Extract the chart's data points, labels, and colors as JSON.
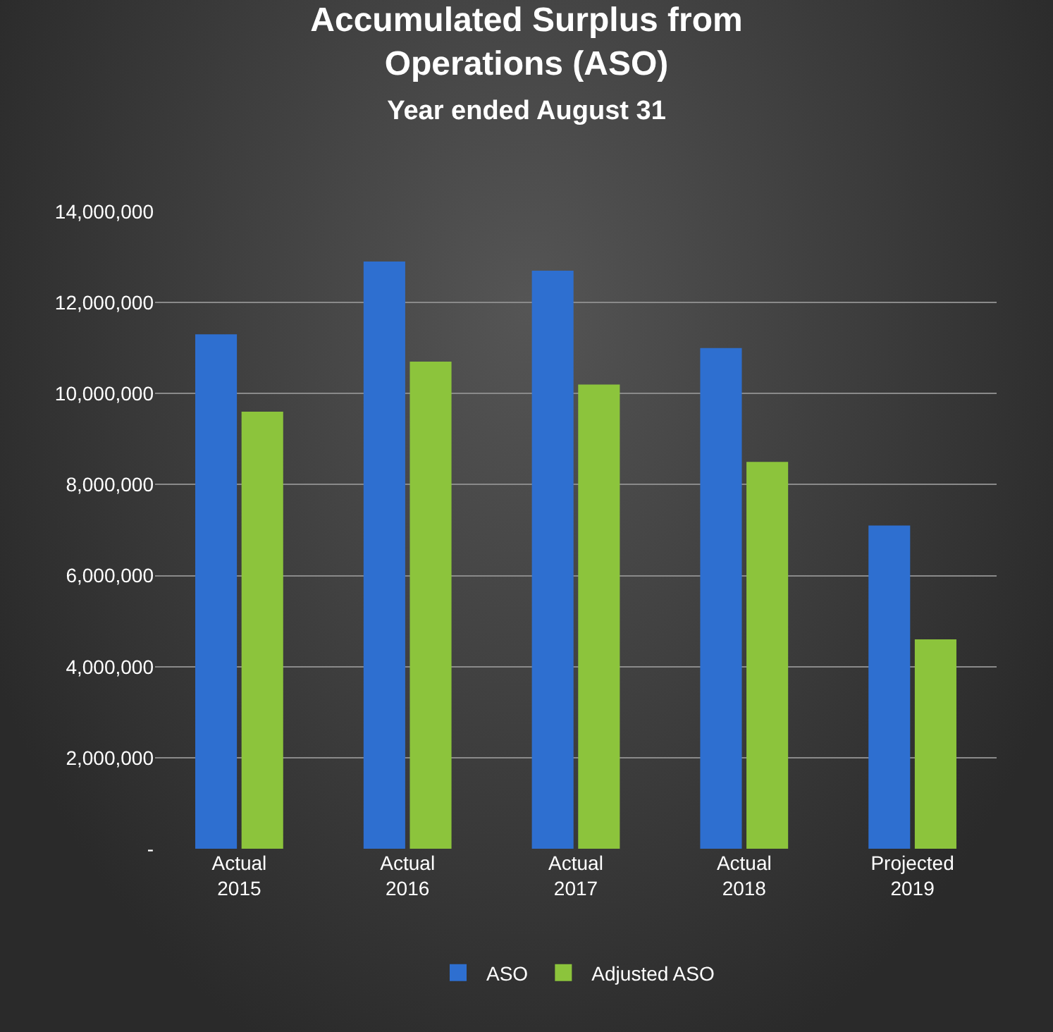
{
  "chart_data": {
    "type": "bar",
    "title": "Accumulated Surplus from\nOperations (ASO)",
    "subtitle": "Year ended August 31",
    "categories": [
      "Actual\n2015",
      "Actual\n2016",
      "Actual\n2017",
      "Actual\n2018",
      "Projected\n2019"
    ],
    "series": [
      {
        "name": "ASO",
        "color": "#2e6fd0",
        "values": [
          11300000,
          12900000,
          12700000,
          11000000,
          7100000
        ]
      },
      {
        "name": "Adjusted ASO",
        "color": "#8cc43c",
        "values": [
          9600000,
          10700000,
          10200000,
          8500000,
          4600000
        ]
      }
    ],
    "ylim": [
      0,
      14000000
    ],
    "yticks": [
      {
        "value": 0,
        "label": "-"
      },
      {
        "value": 2000000,
        "label": "2,000,000"
      },
      {
        "value": 4000000,
        "label": "4,000,000"
      },
      {
        "value": 6000000,
        "label": "6,000,000"
      },
      {
        "value": 8000000,
        "label": "8,000,000"
      },
      {
        "value": 10000000,
        "label": "10,000,000"
      },
      {
        "value": 12000000,
        "label": "12,000,000"
      },
      {
        "value": 14000000,
        "label": "14,000,000"
      }
    ],
    "grid": "y",
    "legend": "bottom"
  }
}
